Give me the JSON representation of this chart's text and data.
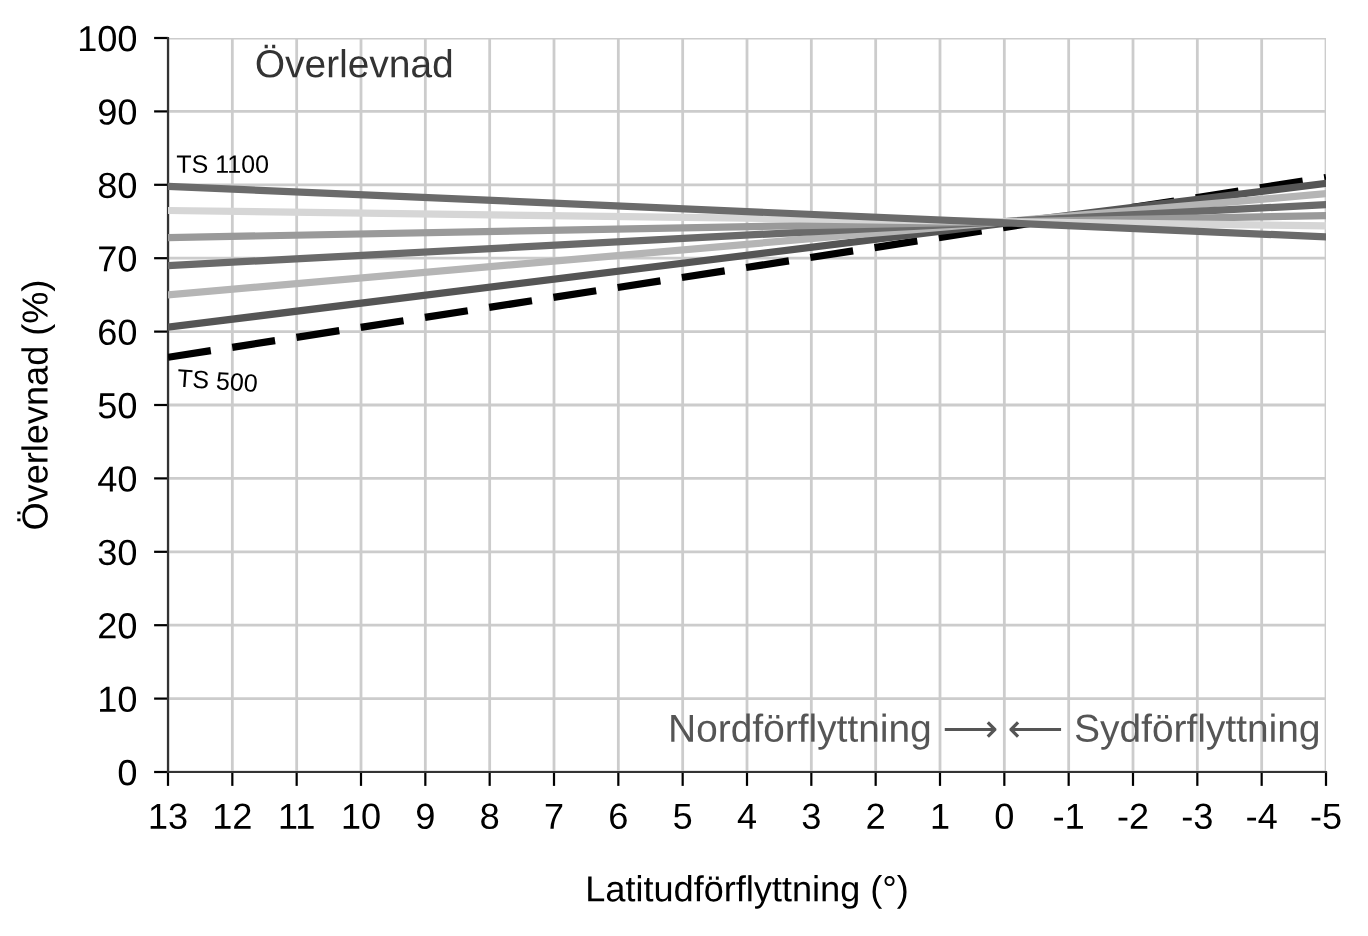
{
  "chart_data": {
    "type": "line",
    "title": "Överlevnad",
    "xlabel": "Latitudförflyttning (°)",
    "ylabel": "Överlevnad (%)",
    "x": [
      13,
      -5
    ],
    "series": [
      {
        "name": "TS 1100",
        "color": "#6b6b6b",
        "values": [
          79.8,
          72.9
        ]
      },
      {
        "color": "#d6d6d6",
        "values": [
          76.5,
          74.4
        ]
      },
      {
        "color": "#9a9a9a",
        "values": [
          72.8,
          75.8
        ]
      },
      {
        "color": "#6a6a6a",
        "values": [
          69,
          77.3
        ]
      },
      {
        "color": "#b5b5b5",
        "values": [
          65,
          78.8
        ]
      },
      {
        "color": "#555555",
        "values": [
          60.6,
          80.2
        ]
      },
      {
        "name": "TS 500",
        "color": "#000000",
        "values": [
          56.5,
          81
        ],
        "line_style": "dashed"
      }
    ],
    "xlim": [
      13,
      -5
    ],
    "xticks": [
      13,
      12,
      11,
      10,
      9,
      8,
      7,
      6,
      5,
      4,
      3,
      2,
      1,
      0,
      -1,
      -2,
      -3,
      -4,
      -5
    ],
    "ylim": [
      0,
      100
    ],
    "yticks": [
      0,
      10,
      20,
      30,
      40,
      50,
      60,
      70,
      80,
      90,
      100
    ],
    "grid": true,
    "legend": false,
    "marker": "none",
    "line_style": "solid",
    "annotations": [
      "Nordförflyttning ⟶",
      "⟵ Sydförflyttning"
    ]
  }
}
